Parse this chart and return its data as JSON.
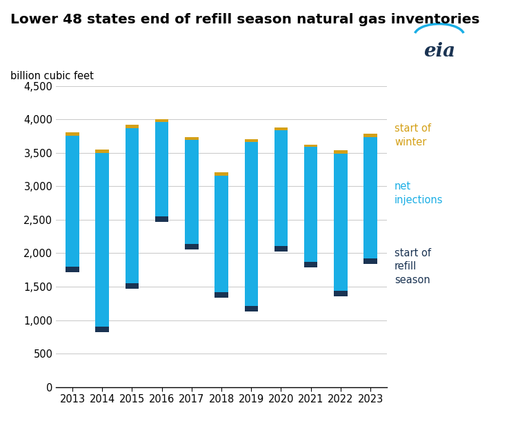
{
  "title": "Lower 48 states end of refill season natural gas inventories",
  "ylabel": "billion cubic feet",
  "years": [
    2013,
    2014,
    2015,
    2016,
    2017,
    2018,
    2019,
    2020,
    2021,
    2022,
    2023
  ],
  "start_of_refill": [
    1720,
    820,
    1470,
    2470,
    2060,
    1340,
    1130,
    2030,
    1790,
    1360,
    1840
  ],
  "end_of_refill": [
    3760,
    3500,
    3870,
    3960,
    3690,
    3155,
    3660,
    3840,
    3595,
    3490,
    3740
  ],
  "start_of_winter": [
    3810,
    3555,
    3920,
    4000,
    3740,
    3210,
    3700,
    3880,
    3625,
    3540,
    3790
  ],
  "bar_color_blue": "#1AAEE5",
  "bar_color_dark": "#1A3352",
  "bar_color_yellow": "#D4A017",
  "ylim": [
    0,
    4500
  ],
  "yticks": [
    0,
    500,
    1000,
    1500,
    2000,
    2500,
    3000,
    3500,
    4000,
    4500
  ],
  "bar_width": 0.45,
  "background_color": "#ffffff",
  "grid_color": "#cccccc",
  "title_fontsize": 14.5,
  "label_fontsize": 10.5,
  "tick_fontsize": 10.5,
  "legend_fontsize": 10.5
}
